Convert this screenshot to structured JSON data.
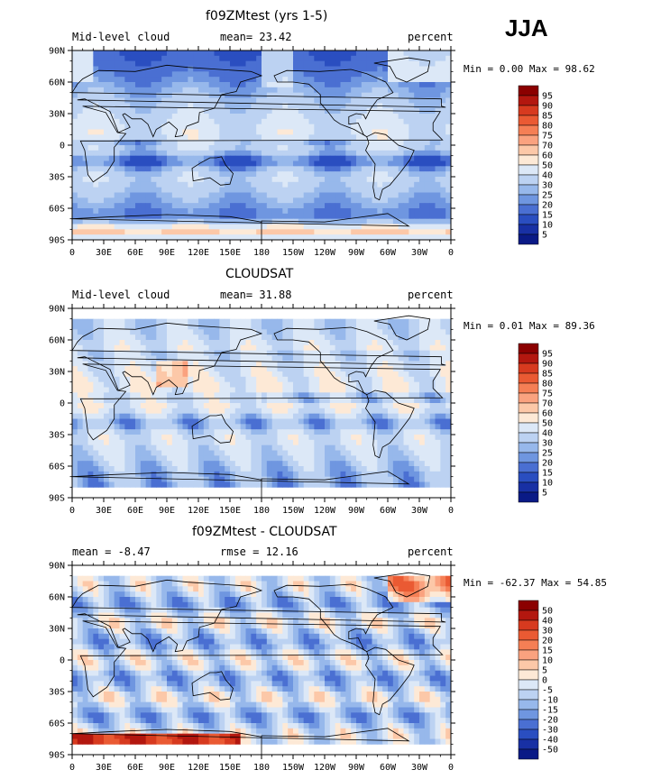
{
  "season": "JJA",
  "panels": [
    {
      "title": "f09ZMtest (yrs 1-5)",
      "left_label": "Mid-level cloud",
      "center_label": "mean=  23.42",
      "right_label": "percent",
      "stats": "Min =   0.00 Max =  98.62",
      "legend_labels": [
        "95",
        "90",
        "85",
        "80",
        "75",
        "70",
        "60",
        "50",
        "40",
        "30",
        "25",
        "20",
        "15",
        "10",
        "5"
      ],
      "legend_colors": [
        "#8b0000",
        "#b3170f",
        "#d73a1f",
        "#ea5a33",
        "#f57f55",
        "#faa27f",
        "#fcc8a8",
        "#fde9d6",
        "#dce8f7",
        "#bcd2f2",
        "#97b8eb",
        "#6f96e0",
        "#4a6fd2",
        "#2a4ec0",
        "#1830a4",
        "#0a1a86"
      ],
      "lat_labels": [
        "90N",
        "60N",
        "30N",
        "0",
        "30S",
        "60S",
        "90S"
      ],
      "lon_labels": [
        "0",
        "30E",
        "60E",
        "90E",
        "120E",
        "150E",
        "180",
        "150W",
        "120W",
        "90W",
        "60W",
        "30W",
        "0"
      ],
      "field": "model"
    },
    {
      "title": "CLOUDSAT",
      "left_label": "Mid-level cloud",
      "center_label": "mean=  31.88",
      "right_label": "percent",
      "stats": "Min =   0.01 Max =  89.36",
      "legend_labels": [
        "95",
        "90",
        "85",
        "80",
        "75",
        "70",
        "60",
        "50",
        "40",
        "30",
        "25",
        "20",
        "15",
        "10",
        "5"
      ],
      "legend_colors": [
        "#8b0000",
        "#b3170f",
        "#d73a1f",
        "#ea5a33",
        "#f57f55",
        "#faa27f",
        "#fcc8a8",
        "#fde9d6",
        "#dce8f7",
        "#bcd2f2",
        "#97b8eb",
        "#6f96e0",
        "#4a6fd2",
        "#2a4ec0",
        "#1830a4",
        "#0a1a86"
      ],
      "lat_labels": [
        "90N",
        "60N",
        "30N",
        "0",
        "30S",
        "60S",
        "90S"
      ],
      "lon_labels": [
        "0",
        "30E",
        "60E",
        "90E",
        "120E",
        "150E",
        "180",
        "150W",
        "120W",
        "90W",
        "60W",
        "30W",
        "0"
      ],
      "field": "obs"
    },
    {
      "title": "f09ZMtest - CLOUDSAT",
      "left_label": "mean =  -8.47",
      "center_label": "rmse =  12.16",
      "right_label": "percent",
      "stats": "Min = -62.37 Max =  54.85",
      "legend_labels": [
        "50",
        "40",
        "30",
        "20",
        "15",
        "10",
        "5",
        "0",
        "-5",
        "-10",
        "-15",
        "-20",
        "-30",
        "-40",
        "-50"
      ],
      "legend_colors": [
        "#8b0000",
        "#b3170f",
        "#d73a1f",
        "#ea5a33",
        "#f57f55",
        "#faa27f",
        "#fcc8a8",
        "#fde9d6",
        "#dce8f7",
        "#bcd2f2",
        "#97b8eb",
        "#6f96e0",
        "#4a6fd2",
        "#2a4ec0",
        "#1830a4",
        "#0a1a86"
      ],
      "lat_labels": [
        "90N",
        "60N",
        "30N",
        "0",
        "30S",
        "60S",
        "90S"
      ],
      "lon_labels": [
        "0",
        "30E",
        "60E",
        "90E",
        "120E",
        "150E",
        "180",
        "150W",
        "120W",
        "90W",
        "60W",
        "30W",
        "0"
      ],
      "field": "diff"
    }
  ]
}
